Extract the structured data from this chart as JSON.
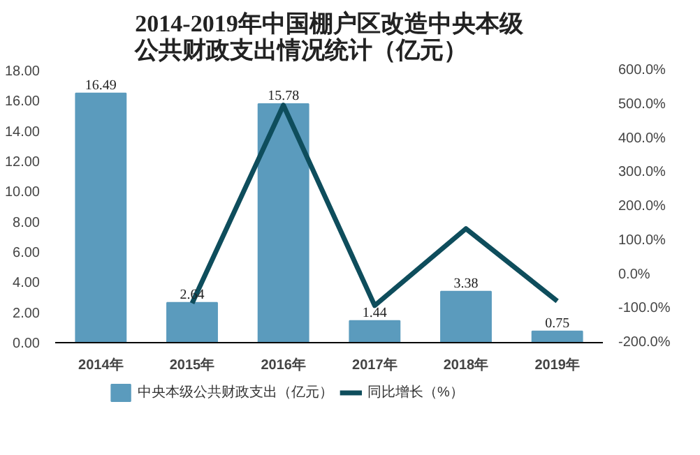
{
  "chart_data": {
    "type": "bar",
    "title": "2014-2019年中国棚户区改造中央本级公共财政支出情况统计（亿元）",
    "categories": [
      "2014年",
      "2015年",
      "2016年",
      "2017年",
      "2018年",
      "2019年"
    ],
    "series": [
      {
        "name": "中央本级公共财政支出（亿元）",
        "color": "#5b9bbd",
        "values": [
          16.49,
          2.64,
          15.78,
          1.44,
          3.38,
          0.75
        ],
        "value_labels": [
          "16.49",
          "2.64",
          "15.78",
          "1.44",
          "3.38",
          "0.75"
        ]
      },
      {
        "name": "同比增长（%）",
        "type": "line",
        "axis": "y2",
        "color": "#0e4d5c",
        "values": [
          null,
          -84,
          498,
          -91,
          135,
          -78
        ]
      }
    ],
    "ylim": [
      0,
      18
    ],
    "yticks": [
      {
        "value": 0,
        "label": "0.00"
      },
      {
        "value": 2,
        "label": "2.00"
      },
      {
        "value": 4,
        "label": "4.00"
      },
      {
        "value": 6,
        "label": "6.00"
      },
      {
        "value": 8,
        "label": "8.00"
      },
      {
        "value": 10,
        "label": "10.00"
      },
      {
        "value": 12,
        "label": "12.00"
      },
      {
        "value": 14,
        "label": "14.00"
      },
      {
        "value": 16,
        "label": "16.00"
      },
      {
        "value": 18,
        "label": "18.00"
      }
    ],
    "y2lim": [
      -200,
      600
    ],
    "y2ticks": [
      {
        "value": -200,
        "label": "-200.0%"
      },
      {
        "value": -100,
        "label": "-100.0%"
      },
      {
        "value": 0,
        "label": "0.0%"
      },
      {
        "value": 100,
        "label": "100.0%"
      },
      {
        "value": 200,
        "label": "200.0%"
      },
      {
        "value": 300,
        "label": "300.0%"
      },
      {
        "value": 400,
        "label": "400.0%"
      },
      {
        "value": 500,
        "label": "500.0%"
      },
      {
        "value": 600,
        "label": "600.0%"
      }
    ],
    "legend": "bottom",
    "grid": false,
    "marker": "none",
    "line_style": "solid"
  }
}
